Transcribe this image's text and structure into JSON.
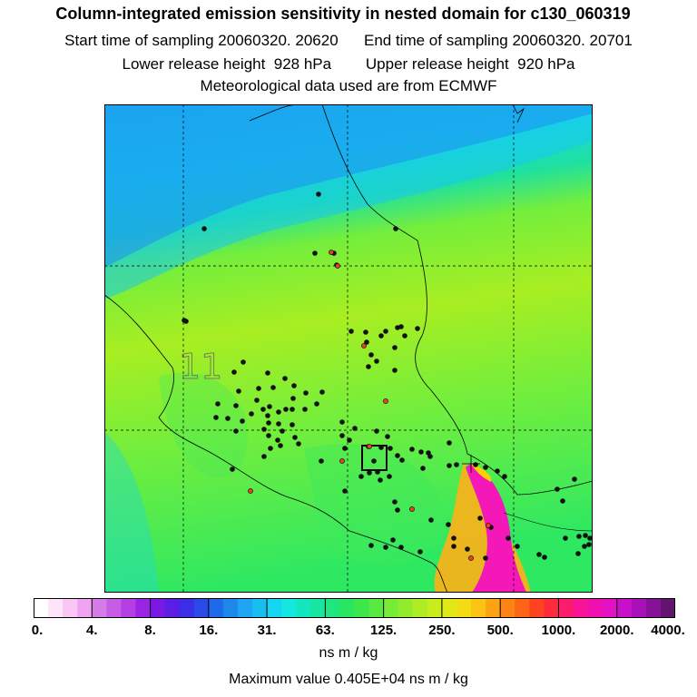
{
  "header": {
    "title": "Column-integrated emission sensitivity in nested domain for c130_060319",
    "line1": "Start time of sampling 20060320. 20620      End time of sampling 20060320. 20701",
    "line2": "Lower release height  928 hPa        Upper release height  920 hPa",
    "line3": "Meteorological data used are from ECMWF"
  },
  "map": {
    "overlay_label": "11",
    "colors": {
      "north_blue": "#1ea8f0",
      "cyan": "#16d8e6",
      "teal": "#1fe0a0",
      "green": "#2fe862",
      "light_green": "#74ee3c",
      "yellow_green": "#a8ee22",
      "magenta": "#f418b8",
      "orange": "#ff9a18"
    }
  },
  "colorbar": {
    "tick_labels": [
      "0.",
      "4.",
      "8.",
      "16.",
      "31.",
      "63.",
      "125.",
      "250.",
      "500.",
      "1000.",
      "2000.",
      "4000."
    ],
    "colors": [
      "#ffffff",
      "#fde4fb",
      "#f9c6f6",
      "#f0a3f2",
      "#d67ce8",
      "#c75ce6",
      "#b53ee4",
      "#9a24e4",
      "#7a18e4",
      "#5a1ee4",
      "#3a2ee8",
      "#2a4ae8",
      "#1e6ae8",
      "#1e88ea",
      "#1ea4f0",
      "#18bef0",
      "#14d6f0",
      "#14e6e2",
      "#14e6c0",
      "#18e6a0",
      "#20e680",
      "#28e660",
      "#3ee84c",
      "#58ea40",
      "#76ec36",
      "#92ec2c",
      "#aeec24",
      "#c8ec1c",
      "#e0e818",
      "#f4dc14",
      "#fcc214",
      "#fca414",
      "#fc8414",
      "#fc6418",
      "#fc4420",
      "#fc2c3c",
      "#fc1c6c",
      "#f81496",
      "#f010b0",
      "#e410c4",
      "#c810c8",
      "#a810b8",
      "#861298",
      "#641470"
    ],
    "unit": "ns m / kg"
  },
  "max_value_label": "Maximum value  0.405E+04 ns m / kg"
}
